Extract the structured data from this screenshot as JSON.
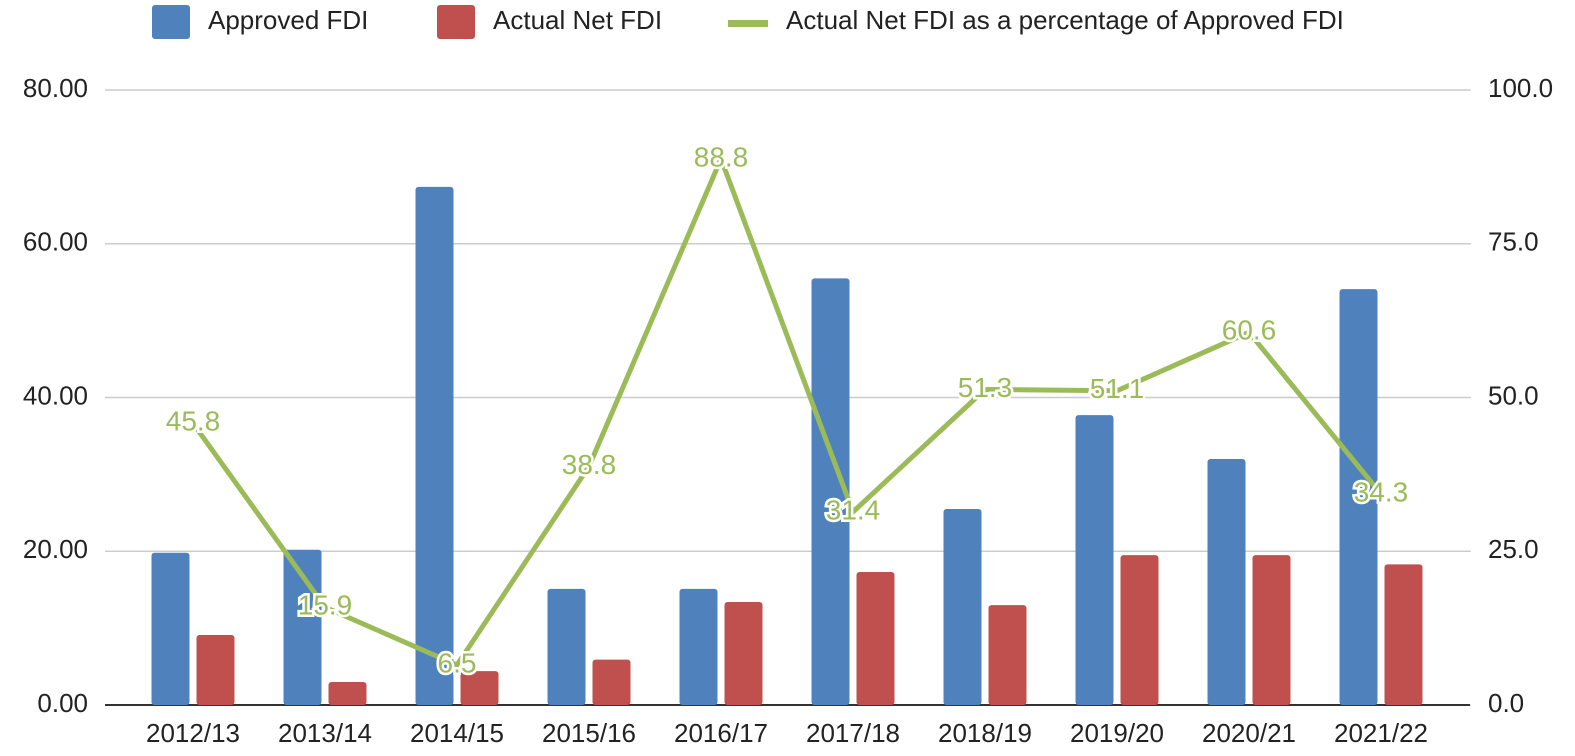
{
  "chart_data": {
    "type": "bar+line",
    "categories": [
      "2012/13",
      "2013/14",
      "2014/15",
      "2015/16",
      "2016/17",
      "2017/18",
      "2018/19",
      "2019/20",
      "2020/21",
      "2021/22"
    ],
    "series": [
      {
        "name": "Approved FDI",
        "color": "#4f81bd",
        "type": "bar",
        "values": [
          19.8,
          20.2,
          67.4,
          15.1,
          15.1,
          55.5,
          25.5,
          37.7,
          32.0,
          54.1
        ]
      },
      {
        "name": "Actual Net FDI",
        "color": "#c0504d",
        "type": "bar",
        "values": [
          9.1,
          3.0,
          4.4,
          5.9,
          13.4,
          17.3,
          13.0,
          19.5,
          19.5,
          18.3
        ]
      },
      {
        "name": "Actual Net FDI as a percentage of Approved FDI",
        "color": "#9bbb59",
        "type": "line",
        "axis": "y2",
        "values": [
          45.8,
          15.9,
          6.5,
          38.8,
          88.8,
          31.4,
          51.3,
          51.1,
          60.6,
          34.3
        ]
      }
    ],
    "ylim": [
      0,
      80
    ],
    "yticks": [
      {
        "value": 0,
        "label": "0.00"
      },
      {
        "value": 20,
        "label": "20.00"
      },
      {
        "value": 40,
        "label": "40.00"
      },
      {
        "value": 60,
        "label": "60.00"
      },
      {
        "value": 80,
        "label": "80.00"
      }
    ],
    "y2lim": [
      0,
      100
    ],
    "y2ticks": [
      {
        "value": 0,
        "label": "0.0"
      },
      {
        "value": 25,
        "label": "25.0"
      },
      {
        "value": 50,
        "label": "50.0"
      },
      {
        "value": 75,
        "label": "75.0"
      },
      {
        "value": 100,
        "label": "100.0"
      }
    ],
    "grid": true,
    "legend": "top"
  }
}
